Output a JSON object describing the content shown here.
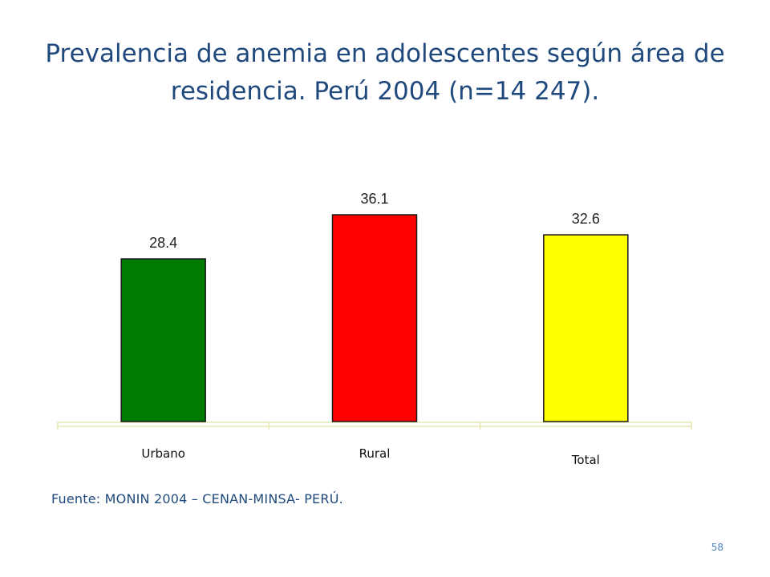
{
  "slide": {
    "title_line1": "Prevalencia de anemia en adolescentes según área de",
    "title_line2": "residencia. Perú 2004 (n=14 247).",
    "source": "Fuente: MONIN 2004 – CENAN-MINSA- PERÚ.",
    "page_number": "58"
  },
  "chart_data": {
    "type": "bar",
    "title": "",
    "xlabel": "",
    "ylabel": "",
    "categories": [
      "Urbano",
      "Rural",
      "Total"
    ],
    "values": [
      28.4,
      36.1,
      32.6
    ],
    "data_labels": [
      "28.4",
      "36.1",
      "32.6"
    ],
    "ylim": [
      0,
      40.3
    ],
    "grid": false,
    "legend": "none",
    "colors": [
      "#007a00",
      "#ff0000",
      "#ffff00"
    ],
    "bar_outline_color": "#1a1a1a",
    "axis_color": "#e8e8b0"
  }
}
